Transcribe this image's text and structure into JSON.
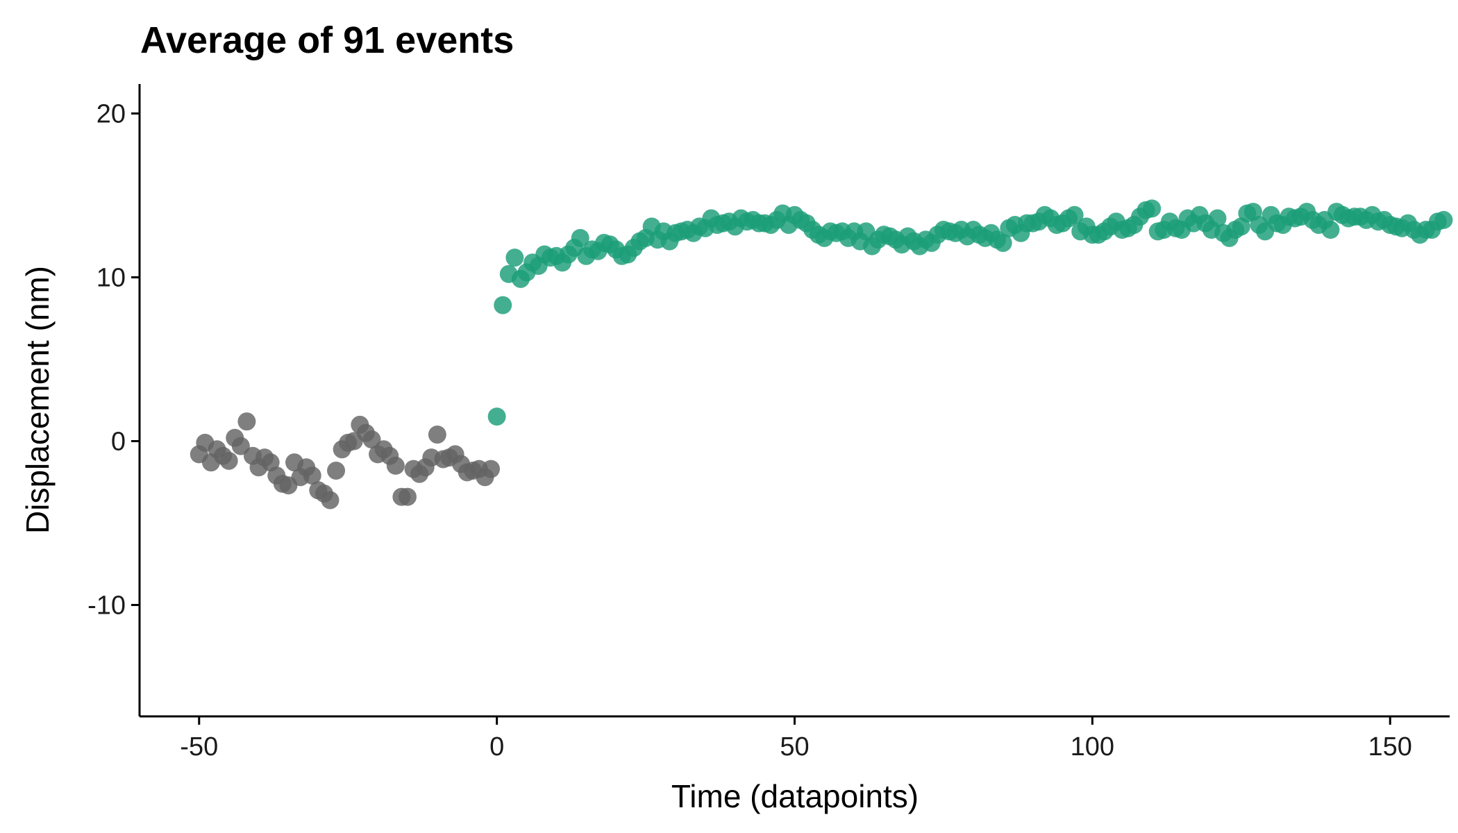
{
  "chart_data": {
    "type": "scatter",
    "title": "Average of 91 events",
    "xlabel": "Time (datapoints)",
    "ylabel": "Displacement (nm)",
    "xlim": [
      -60,
      160
    ],
    "ylim": [
      -16.8,
      21.8
    ],
    "x_ticks": [
      -50,
      0,
      50,
      100,
      150
    ],
    "x_tick_labels": [
      "-50",
      "0",
      "50",
      "100",
      "150"
    ],
    "y_ticks": [
      -10,
      0,
      10,
      20
    ],
    "y_tick_labels": [
      "-10",
      "0",
      "10",
      "20"
    ],
    "grid": false,
    "legend": "none",
    "colors": {
      "before_event": "#636363",
      "after_event": "#1b9e77"
    },
    "series": [
      {
        "color": "#636363",
        "points": [
          [
            -50,
            -0.8
          ],
          [
            -49,
            -0.1
          ],
          [
            -48,
            -1.3
          ],
          [
            -47,
            -0.5
          ],
          [
            -46,
            -0.9
          ],
          [
            -45,
            -1.2
          ],
          [
            -44,
            0.2
          ],
          [
            -43,
            -0.3
          ],
          [
            -42,
            1.2
          ],
          [
            -41,
            -0.9
          ],
          [
            -40,
            -1.6
          ],
          [
            -39,
            -1.0
          ],
          [
            -38,
            -1.3
          ],
          [
            -37,
            -2.1
          ],
          [
            -36,
            -2.6
          ],
          [
            -35,
            -2.7
          ],
          [
            -34,
            -1.3
          ],
          [
            -33,
            -2.2
          ],
          [
            -32,
            -1.6
          ],
          [
            -31,
            -2.1
          ],
          [
            -30,
            -3.0
          ],
          [
            -29,
            -3.2
          ],
          [
            -28,
            -3.6
          ],
          [
            -27,
            -1.8
          ],
          [
            -26,
            -0.5
          ],
          [
            -25,
            -0.1
          ],
          [
            -24,
            0.0
          ],
          [
            -23,
            1.0
          ],
          [
            -22,
            0.5
          ],
          [
            -21,
            0.1
          ],
          [
            -20,
            -0.8
          ],
          [
            -19,
            -0.5
          ],
          [
            -18,
            -0.9
          ],
          [
            -17,
            -1.5
          ],
          [
            -16,
            -3.4
          ],
          [
            -15,
            -3.4
          ],
          [
            -14,
            -1.7
          ],
          [
            -13,
            -2.0
          ],
          [
            -12,
            -1.6
          ],
          [
            -11,
            -1.0
          ],
          [
            -10,
            0.4
          ],
          [
            -9,
            -1.1
          ],
          [
            -8,
            -1.0
          ],
          [
            -7,
            -0.8
          ],
          [
            -6,
            -1.4
          ],
          [
            -5,
            -1.9
          ],
          [
            -4,
            -1.8
          ],
          [
            -3,
            -1.7
          ],
          [
            -2,
            -2.2
          ],
          [
            -1,
            -1.7
          ]
        ]
      },
      {
        "color": "#1b9e77",
        "points": [
          [
            0,
            1.5
          ],
          [
            1,
            8.3
          ],
          [
            2,
            10.2
          ],
          [
            3,
            11.2
          ],
          [
            4,
            9.9
          ],
          [
            5,
            10.3
          ],
          [
            6,
            10.9
          ],
          [
            7,
            10.7
          ],
          [
            8,
            11.4
          ],
          [
            9,
            11.2
          ],
          [
            10,
            11.3
          ],
          [
            11,
            10.9
          ],
          [
            12,
            11.4
          ],
          [
            13,
            11.8
          ],
          [
            14,
            12.4
          ],
          [
            15,
            11.3
          ],
          [
            16,
            11.7
          ],
          [
            17,
            11.6
          ],
          [
            18,
            12.1
          ],
          [
            19,
            12.0
          ],
          [
            20,
            11.7
          ],
          [
            21,
            11.3
          ],
          [
            22,
            11.4
          ],
          [
            23,
            11.8
          ],
          [
            24,
            12.2
          ],
          [
            25,
            12.4
          ],
          [
            26,
            13.1
          ],
          [
            27,
            12.3
          ],
          [
            28,
            12.8
          ],
          [
            29,
            12.2
          ],
          [
            30,
            12.7
          ],
          [
            31,
            12.8
          ],
          [
            32,
            12.9
          ],
          [
            33,
            12.7
          ],
          [
            34,
            13.1
          ],
          [
            35,
            13.0
          ],
          [
            36,
            13.6
          ],
          [
            37,
            13.2
          ],
          [
            38,
            13.3
          ],
          [
            39,
            13.4
          ],
          [
            40,
            13.1
          ],
          [
            41,
            13.6
          ],
          [
            42,
            13.4
          ],
          [
            43,
            13.5
          ],
          [
            44,
            13.3
          ],
          [
            45,
            13.3
          ],
          [
            46,
            13.2
          ],
          [
            47,
            13.5
          ],
          [
            48,
            13.9
          ],
          [
            49,
            13.2
          ],
          [
            50,
            13.8
          ],
          [
            51,
            13.5
          ],
          [
            52,
            13.3
          ],
          [
            53,
            12.9
          ],
          [
            54,
            12.6
          ],
          [
            55,
            12.4
          ],
          [
            56,
            12.8
          ],
          [
            57,
            12.7
          ],
          [
            58,
            12.8
          ],
          [
            59,
            12.4
          ],
          [
            60,
            12.8
          ],
          [
            61,
            12.2
          ],
          [
            62,
            12.8
          ],
          [
            63,
            11.9
          ],
          [
            64,
            12.3
          ],
          [
            65,
            12.6
          ],
          [
            66,
            12.5
          ],
          [
            67,
            12.3
          ],
          [
            68,
            12.0
          ],
          [
            69,
            12.5
          ],
          [
            70,
            12.2
          ],
          [
            71,
            11.9
          ],
          [
            72,
            12.3
          ],
          [
            73,
            12.1
          ],
          [
            74,
            12.6
          ],
          [
            75,
            12.9
          ],
          [
            76,
            12.8
          ],
          [
            77,
            12.7
          ],
          [
            78,
            12.9
          ],
          [
            79,
            12.5
          ],
          [
            80,
            12.9
          ],
          [
            81,
            12.6
          ],
          [
            82,
            12.4
          ],
          [
            83,
            12.7
          ],
          [
            84,
            12.3
          ],
          [
            85,
            12.1
          ],
          [
            86,
            13.0
          ],
          [
            87,
            13.2
          ],
          [
            88,
            12.7
          ],
          [
            89,
            13.3
          ],
          [
            90,
            13.3
          ],
          [
            91,
            13.4
          ],
          [
            92,
            13.8
          ],
          [
            93,
            13.6
          ],
          [
            94,
            13.2
          ],
          [
            95,
            13.3
          ],
          [
            96,
            13.6
          ],
          [
            97,
            13.8
          ],
          [
            98,
            12.8
          ],
          [
            99,
            13.1
          ],
          [
            100,
            12.6
          ],
          [
            101,
            12.6
          ],
          [
            102,
            12.8
          ],
          [
            103,
            13.1
          ],
          [
            104,
            13.4
          ],
          [
            105,
            12.9
          ],
          [
            106,
            13.0
          ],
          [
            107,
            13.2
          ],
          [
            108,
            13.7
          ],
          [
            109,
            14.1
          ],
          [
            110,
            14.2
          ],
          [
            111,
            12.8
          ],
          [
            112,
            12.9
          ],
          [
            113,
            13.4
          ],
          [
            114,
            13.0
          ],
          [
            115,
            12.9
          ],
          [
            116,
            13.6
          ],
          [
            117,
            13.3
          ],
          [
            118,
            13.8
          ],
          [
            119,
            13.3
          ],
          [
            120,
            12.9
          ],
          [
            121,
            13.6
          ],
          [
            122,
            12.7
          ],
          [
            123,
            12.4
          ],
          [
            124,
            12.9
          ],
          [
            125,
            13.1
          ],
          [
            126,
            13.9
          ],
          [
            127,
            14.0
          ],
          [
            128,
            13.2
          ],
          [
            129,
            12.8
          ],
          [
            130,
            13.8
          ],
          [
            131,
            13.3
          ],
          [
            132,
            13.2
          ],
          [
            133,
            13.7
          ],
          [
            134,
            13.6
          ],
          [
            135,
            13.7
          ],
          [
            136,
            14.0
          ],
          [
            137,
            13.5
          ],
          [
            138,
            13.2
          ],
          [
            139,
            13.5
          ],
          [
            140,
            12.9
          ],
          [
            141,
            14.0
          ],
          [
            142,
            13.8
          ],
          [
            143,
            13.6
          ],
          [
            144,
            13.7
          ],
          [
            145,
            13.7
          ],
          [
            146,
            13.5
          ],
          [
            147,
            13.8
          ],
          [
            148,
            13.4
          ],
          [
            149,
            13.5
          ],
          [
            150,
            13.2
          ],
          [
            151,
            13.1
          ],
          [
            152,
            13.0
          ],
          [
            153,
            13.3
          ],
          [
            154,
            12.9
          ],
          [
            155,
            12.6
          ],
          [
            156,
            12.9
          ],
          [
            157,
            12.9
          ],
          [
            158,
            13.4
          ],
          [
            159,
            13.5
          ]
        ]
      }
    ]
  }
}
